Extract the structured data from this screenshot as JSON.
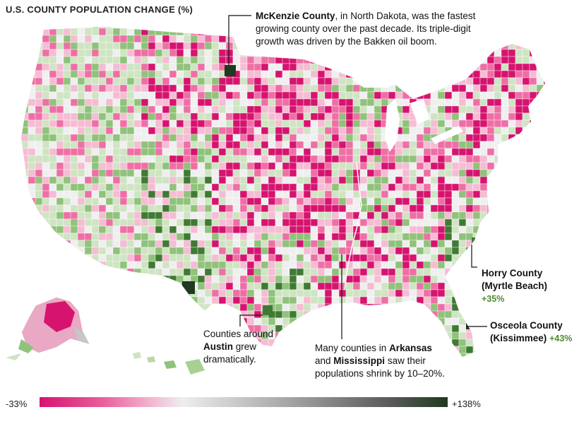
{
  "title": "U.S. COUNTY POPULATION CHANGE (%)",
  "annotations": {
    "mckenzie": {
      "name": "McKenzie County",
      "text1": ", in North Dakota, was the fastest",
      "text2": "growing county over the past decade. Its triple-digit",
      "text3": "growth was driven by the Bakken oil boom."
    },
    "horry": {
      "line1": "Horry County",
      "line2": "(Myrtle Beach)",
      "value": "+35%"
    },
    "osceola": {
      "line1": "Osceola County",
      "line2": "(Kissimmee)",
      "value": "+43%"
    },
    "austin": {
      "line1": "Counties around",
      "name": "Austin",
      "line2rest": " grew",
      "line3": "dramatically."
    },
    "arkansas": {
      "line1pre": "Many counties in ",
      "name1": "Arkansas",
      "line2pre": "and ",
      "name2": "Mississippi",
      "line2rest": " saw their",
      "line3": "populations shrink by 10–20%."
    }
  },
  "legend": {
    "min_label": "-33%",
    "max_label": "+138%",
    "colors": [
      "#d6136f",
      "#e95b9a",
      "#f2b3cf",
      "#eeeeee",
      "#9c9c9c",
      "#5a5a5a",
      "#1f3a1f"
    ]
  },
  "colors": {
    "loss_strong": "#d6136f",
    "loss_mid": "#ee6fa5",
    "loss_light": "#f5bcd3",
    "neutral": "#efefef",
    "gain_light": "#cfe4c2",
    "gain_mid": "#8fc27a",
    "gain_strong": "#3f7a33",
    "gain_max": "#1f3a1f"
  }
}
